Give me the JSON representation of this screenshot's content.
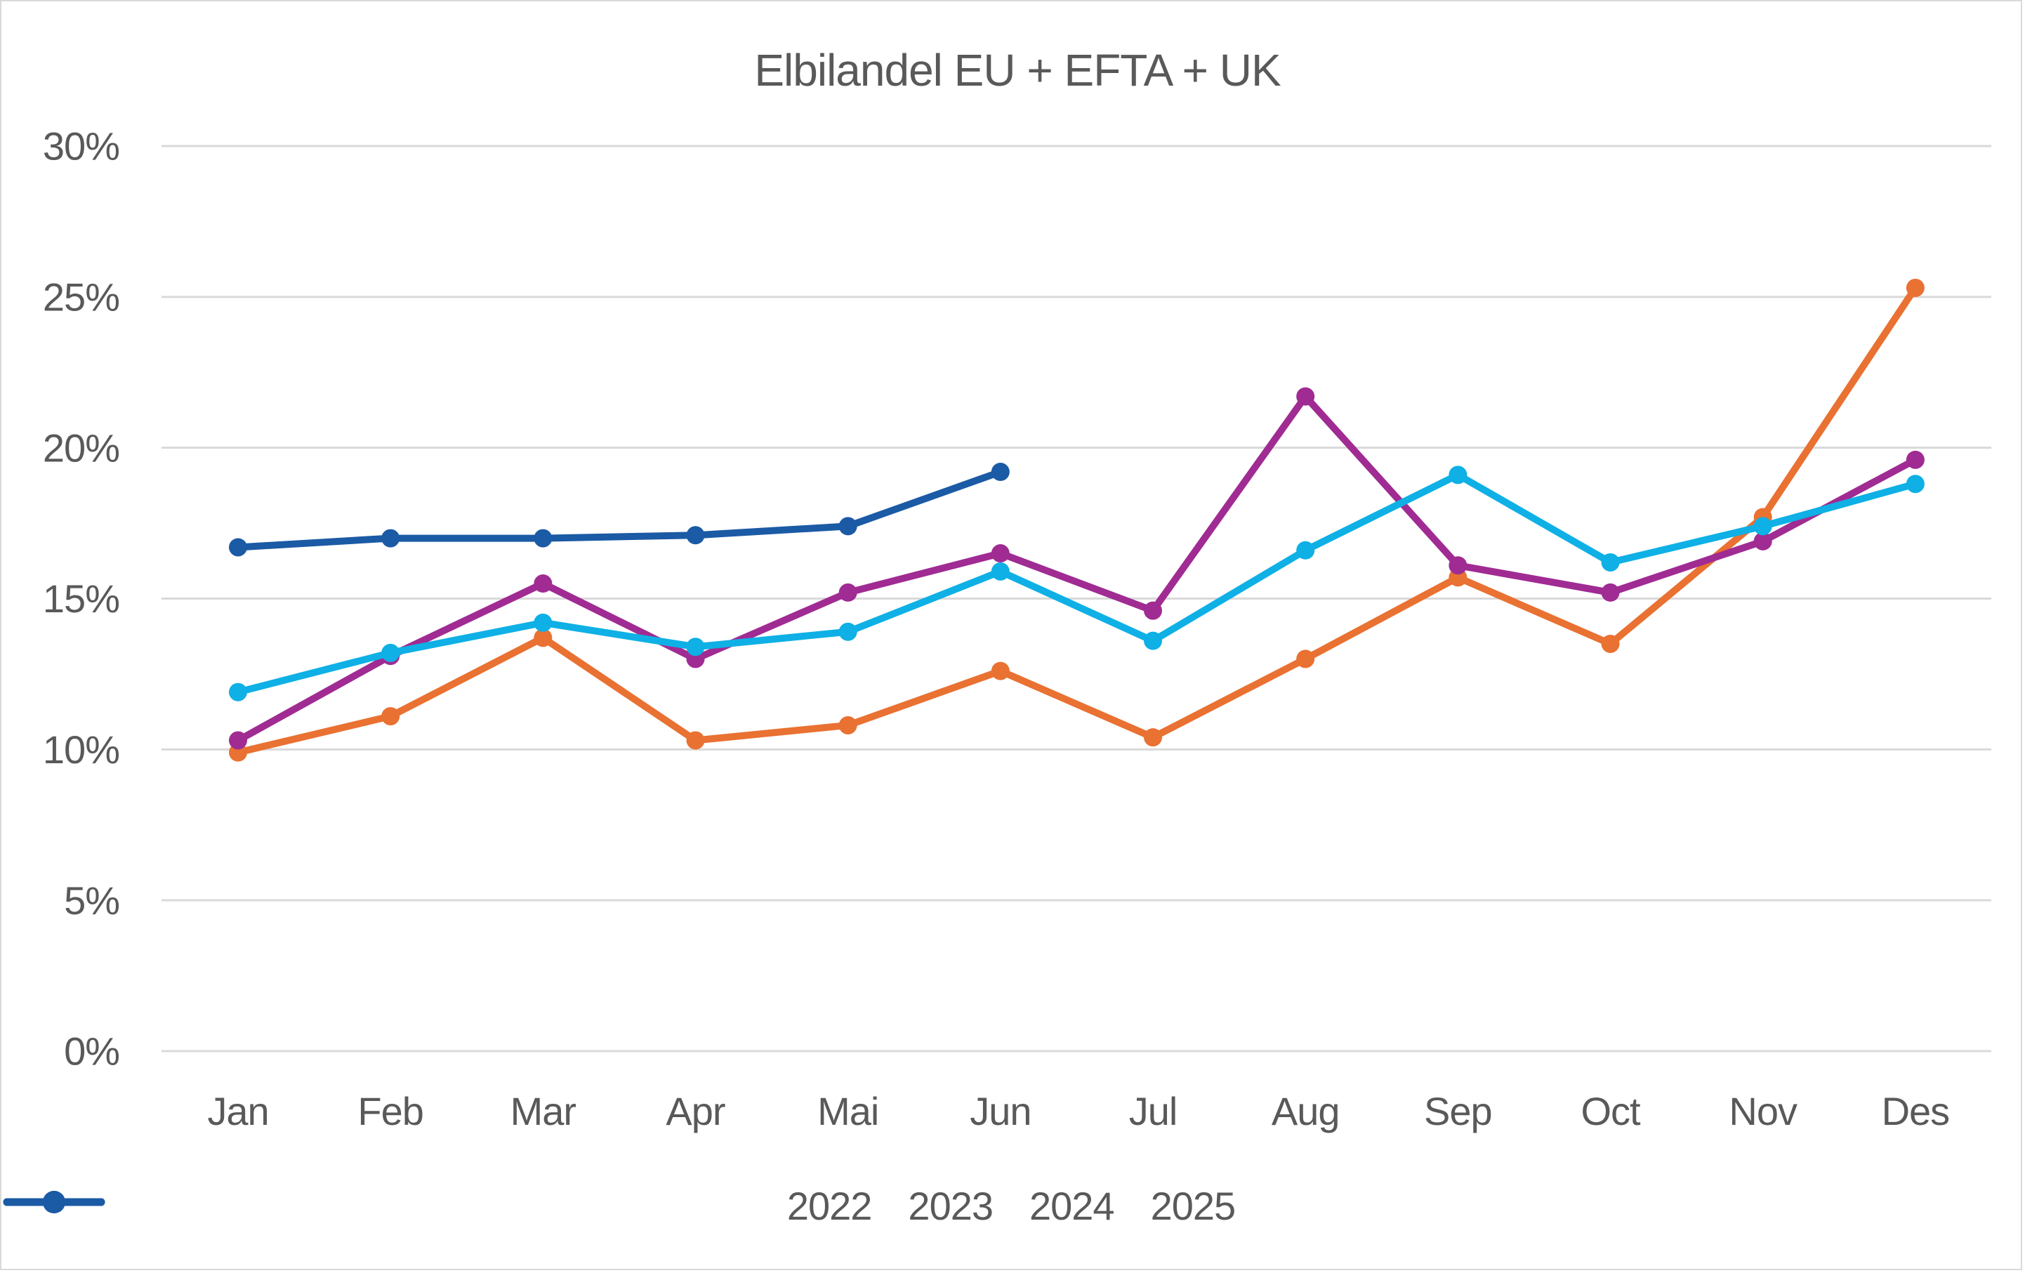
{
  "chart_data": {
    "type": "line",
    "title": "Elbilandel EU + EFTA + UK",
    "categories": [
      "Jan",
      "Feb",
      "Mar",
      "Apr",
      "Mai",
      "Jun",
      "Jul",
      "Aug",
      "Sep",
      "Oct",
      "Nov",
      "Des"
    ],
    "y_tick_labels": [
      "0%",
      "5%",
      "10%",
      "15%",
      "20%",
      "25%",
      "30%"
    ],
    "ylim": [
      0,
      30
    ],
    "y_tick_step": 5,
    "grid": "horizontal",
    "legend_position": "bottom",
    "series": [
      {
        "name": "2022",
        "color": "#E97132",
        "values": [
          9.9,
          11.1,
          13.7,
          10.3,
          10.8,
          12.6,
          10.4,
          13.0,
          15.7,
          13.5,
          17.7,
          25.3
        ]
      },
      {
        "name": "2023",
        "color": "#A02B93",
        "values": [
          10.3,
          13.1,
          15.5,
          13.0,
          15.2,
          16.5,
          14.6,
          21.7,
          16.1,
          15.2,
          16.9,
          19.6
        ]
      },
      {
        "name": "2024",
        "color": "#0EB0E5",
        "values": [
          11.9,
          13.2,
          14.2,
          13.4,
          13.9,
          15.9,
          13.6,
          16.6,
          19.1,
          16.2,
          17.4,
          18.8
        ]
      },
      {
        "name": "2025",
        "color": "#1B5AA5",
        "values": [
          16.7,
          17.0,
          17.0,
          17.1,
          17.4,
          19.2
        ]
      }
    ],
    "colors": {
      "grid": "#D9D9D9",
      "axis_text": "#595959",
      "title_text": "#595959",
      "background": "#FFFFFF",
      "border": "#D9D9D9"
    }
  }
}
